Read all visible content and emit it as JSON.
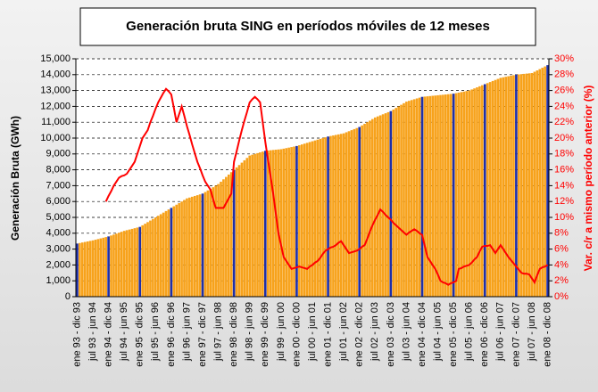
{
  "chart_data": {
    "type": "bar",
    "title": "Generación bruta SING en períodos móviles de 12 meses",
    "ylabel": "Generación Bruta (GWh)",
    "y2label": "Var. c/r a mismo período anterior (%)",
    "categories": [
      "ene 93 - dic 93",
      null,
      null,
      null,
      null,
      null,
      "jul 93 - jun 94",
      null,
      null,
      null,
      null,
      null,
      "ene 94 - dic 94",
      null,
      null,
      null,
      null,
      null,
      "jul 94 - jun 95",
      null,
      null,
      null,
      null,
      null,
      "ene 95 - dic 95",
      null,
      null,
      null,
      null,
      null,
      "jul 95 - jun 96",
      null,
      null,
      null,
      null,
      null,
      "ene 96 - dic 96",
      null,
      null,
      null,
      null,
      null,
      "jul 96 - jun 97",
      null,
      null,
      null,
      null,
      null,
      "ene 97 - dic 97",
      null,
      null,
      null,
      null,
      null,
      "jul 97 - jun 98",
      null,
      null,
      null,
      null,
      null,
      "ene 98 - dic 98",
      null,
      null,
      null,
      null,
      null,
      "jul 98 - jun 99",
      null,
      null,
      null,
      null,
      null,
      "ene 99 - dic 99",
      null,
      null,
      null,
      null,
      null,
      "jul 99 - jun 00",
      null,
      null,
      null,
      null,
      null,
      "ene 00 - dic 00",
      null,
      null,
      null,
      null,
      null,
      "jul 00 - jun 01",
      null,
      null,
      null,
      null,
      null,
      "ene 01 - dic 01",
      null,
      null,
      null,
      null,
      null,
      "jul 01 - jun 02",
      null,
      null,
      null,
      null,
      null,
      "ene 02 - dic 02",
      null,
      null,
      null,
      null,
      null,
      "jul 02 - jun 03",
      null,
      null,
      null,
      null,
      null,
      "ene 03 - dic 03",
      null,
      null,
      null,
      null,
      null,
      "jul 03 - jun 04",
      null,
      null,
      null,
      null,
      null,
      "ene 04 - dic 04",
      null,
      null,
      null,
      null,
      null,
      "jul 04 - jun 05",
      null,
      null,
      null,
      null,
      null,
      "ene 05 - dic 05",
      null,
      null,
      null,
      null,
      null,
      "jul 05 - jun 06",
      null,
      null,
      null,
      null,
      null,
      "ene 06 - dic 06",
      null,
      null,
      null,
      null,
      null,
      "jul 06 - jun 07",
      null,
      null,
      null,
      null,
      null,
      "ene 07 - dic 07",
      null,
      null,
      null,
      null,
      null,
      "jul 07 - jun 08",
      null,
      null,
      null,
      null,
      null,
      "ene 08 - dic 08"
    ],
    "series": [
      {
        "type": "bar",
        "color": "#f7a21b",
        "highlight_color": "#1f2fa8",
        "values": [
          3350,
          3383,
          3417,
          3450,
          3483,
          3517,
          3550,
          3592,
          3633,
          3675,
          3717,
          3758,
          3800,
          3858,
          3917,
          3975,
          4033,
          4092,
          4150,
          4192,
          4233,
          4275,
          4317,
          4358,
          4400,
          4500,
          4600,
          4700,
          4800,
          4900,
          5000,
          5100,
          5200,
          5300,
          5400,
          5500,
          5600,
          5700,
          5800,
          5900,
          6000,
          6100,
          6200,
          6250,
          6300,
          6350,
          6400,
          6450,
          6500,
          6600,
          6700,
          6800,
          6900,
          7000,
          7100,
          7250,
          7400,
          7550,
          7700,
          7850,
          8000,
          8150,
          8300,
          8450,
          8600,
          8750,
          8900,
          8950,
          9000,
          9050,
          9100,
          9150,
          9200,
          9217,
          9233,
          9250,
          9267,
          9283,
          9300,
          9333,
          9367,
          9400,
          9433,
          9467,
          9500,
          9550,
          9600,
          9650,
          9700,
          9750,
          9800,
          9850,
          9900,
          9950,
          10000,
          10050,
          10100,
          10133,
          10167,
          10200,
          10233,
          10267,
          10300,
          10367,
          10433,
          10500,
          10567,
          10633,
          10700,
          10800,
          10900,
          11000,
          11100,
          11200,
          11300,
          11367,
          11433,
          11500,
          11567,
          11633,
          11700,
          11800,
          11900,
          12000,
          12100,
          12200,
          12300,
          12350,
          12400,
          12450,
          12500,
          12550,
          12600,
          12617,
          12633,
          12650,
          12667,
          12683,
          12700,
          12717,
          12733,
          12750,
          12767,
          12783,
          12800,
          12833,
          12867,
          12900,
          12933,
          12967,
          13000,
          13067,
          13133,
          13200,
          13267,
          13333,
          13400,
          13467,
          13533,
          13600,
          13667,
          13733,
          13800,
          13833,
          13867,
          13900,
          13933,
          13967,
          14000,
          14017,
          14033,
          14050,
          14067,
          14083,
          14100,
          14183,
          14267,
          14350,
          14433,
          14517,
          14600
        ]
      },
      {
        "type": "line",
        "axis": "y2",
        "color": "#ff0000",
        "values": [
          null,
          null,
          null,
          null,
          null,
          null,
          null,
          null,
          null,
          null,
          null,
          12,
          12.7,
          13.3,
          14,
          14.5,
          15,
          15.2,
          15.3,
          15.5,
          16,
          16.5,
          17,
          18,
          19,
          20,
          20.5,
          21,
          22,
          22.8,
          23.7,
          24.5,
          25.1,
          25.7,
          26.2,
          25.9,
          25.5,
          23.8,
          22,
          23,
          24,
          22.8,
          21.5,
          20.4,
          19.2,
          18.1,
          17,
          16.2,
          15.3,
          14.5,
          14,
          13.5,
          12.3,
          11.2,
          11.2,
          11.2,
          11.2,
          11.8,
          12.4,
          13,
          17,
          18.3,
          19.7,
          21,
          22.2,
          23.3,
          24.5,
          24.9,
          25.2,
          24.9,
          24.5,
          22,
          19.5,
          17.3,
          15.2,
          13,
          10.5,
          8,
          6.5,
          5,
          4.5,
          4,
          3.5,
          3.6,
          3.7,
          3.8,
          3.7,
          3.6,
          3.5,
          3.8,
          4,
          4.3,
          4.5,
          4.9,
          5.4,
          5.8,
          6,
          6.2,
          6.3,
          6.5,
          6.8,
          7,
          6.5,
          6,
          5.5,
          5.6,
          5.7,
          5.8,
          6,
          6.3,
          6.5,
          7.3,
          8.2,
          9,
          9.7,
          10.3,
          11,
          10.7,
          10.3,
          10,
          9.7,
          9.3,
          9,
          8.7,
          8.4,
          8.1,
          7.8,
          8.1,
          8.3,
          8.5,
          8.3,
          8,
          7.8,
          6.4,
          5,
          4.5,
          4,
          3.5,
          2.8,
          2,
          1.8,
          1.7,
          1.5,
          1.7,
          1.8,
          2,
          3.5,
          3.6,
          3.8,
          3.9,
          4,
          4.3,
          4.7,
          5,
          5.7,
          6.3,
          6.4,
          6.4,
          6.5,
          6,
          5.5,
          6,
          6.5,
          6,
          5.5,
          5,
          4.6,
          4.2,
          3.8,
          3.4,
          3,
          2.9,
          2.9,
          2.8,
          2.3,
          1.8,
          2.7,
          3.5,
          3.7,
          3.8,
          4
        ]
      }
    ],
    "ylim": [
      0,
      15000
    ],
    "yticks": [
      0,
      {
        "value": 1000,
        "label": "1,000"
      },
      {
        "value": 2000,
        "label": "2,000"
      },
      {
        "value": 3000,
        "label": "3,000"
      },
      {
        "value": 4000,
        "label": "4,000"
      },
      {
        "value": 5000,
        "label": "5,000"
      },
      {
        "value": 6000,
        "label": "6,000"
      },
      {
        "value": 7000,
        "label": "7,000"
      },
      {
        "value": 8000,
        "label": "8,000"
      },
      {
        "value": 9000,
        "label": "9,000"
      },
      {
        "value": 10000,
        "label": "10,000"
      },
      {
        "value": 11000,
        "label": "11,000"
      },
      {
        "value": 12000,
        "label": "12,000"
      },
      {
        "value": 13000,
        "label": "13,000"
      },
      {
        "value": 14000,
        "label": "14,000"
      },
      {
        "value": 15000,
        "label": "15,000"
      }
    ],
    "y2lim": [
      0,
      30
    ],
    "y2ticks": [
      {
        "value": 0,
        "label": "0%"
      },
      {
        "value": 2,
        "label": "2%"
      },
      {
        "value": 4,
        "label": "4%"
      },
      {
        "value": 6,
        "label": "6%"
      },
      {
        "value": 8,
        "label": "8%"
      },
      {
        "value": 10,
        "label": "10%"
      },
      {
        "value": 12,
        "label": "12%"
      },
      {
        "value": 14,
        "label": "14%"
      },
      {
        "value": 16,
        "label": "16%"
      },
      {
        "value": 18,
        "label": "18%"
      },
      {
        "value": 20,
        "label": "20%"
      },
      {
        "value": 22,
        "label": "22%"
      },
      {
        "value": 24,
        "label": "24%"
      },
      {
        "value": 26,
        "label": "26%"
      },
      {
        "value": 28,
        "label": "28%"
      },
      {
        "value": 30,
        "label": "30%"
      }
    ],
    "grid": true
  }
}
